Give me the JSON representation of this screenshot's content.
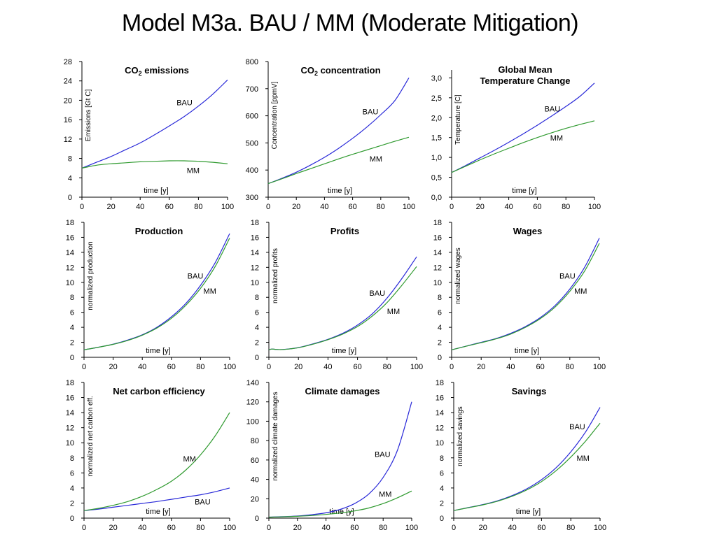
{
  "title": "Model  M3a.  BAU / MM (Moderate Mitigation)",
  "colors": {
    "BAU": "#2828d8",
    "MM": "#2f9a2f"
  },
  "chart_data": [
    {
      "type": "line",
      "title": "CO",
      "title_sub": "2",
      "title_suffix": " emissions",
      "xlabel": "time [y]",
      "ylabel": "Emissions [Gt C]",
      "xlim": [
        0,
        100
      ],
      "ylim": [
        0,
        28
      ],
      "xticks": [
        "0",
        "20",
        "40",
        "60",
        "80",
        "100"
      ],
      "yticks": [
        "0",
        "4",
        "8",
        "12",
        "16",
        "20",
        "24",
        "28"
      ],
      "x": [
        0,
        10,
        20,
        30,
        40,
        50,
        60,
        70,
        80,
        90,
        100
      ],
      "series": [
        {
          "name": "BAU",
          "values": [
            6.0,
            7.2,
            8.4,
            9.8,
            11.2,
            12.9,
            14.7,
            16.6,
            18.8,
            21.3,
            24.2
          ]
        },
        {
          "name": "MM",
          "values": [
            6.0,
            6.6,
            6.9,
            7.1,
            7.3,
            7.4,
            7.5,
            7.5,
            7.4,
            7.2,
            6.9
          ]
        }
      ],
      "labels": [
        {
          "text": "BAU",
          "x": 65,
          "y": 19
        },
        {
          "text": "MM",
          "x": 72,
          "y": 5
        }
      ]
    },
    {
      "type": "line",
      "title": "CO",
      "title_sub": "2",
      "title_suffix": " concentration",
      "xlabel": "time [y]",
      "ylabel": "Concentration [ppmV]",
      "xlim": [
        0,
        100
      ],
      "ylim": [
        300,
        800
      ],
      "xticks": [
        "0",
        "20",
        "40",
        "60",
        "80",
        "100"
      ],
      "yticks": [
        "300",
        "400",
        "500",
        "600",
        "700",
        "800"
      ],
      "x": [
        0,
        10,
        20,
        30,
        40,
        50,
        60,
        70,
        80,
        90,
        100
      ],
      "series": [
        {
          "name": "BAU",
          "values": [
            350,
            370,
            392,
            418,
            447,
            480,
            517,
            558,
            604,
            656,
            740
          ]
        },
        {
          "name": "MM",
          "values": [
            350,
            368,
            387,
            405,
            423,
            441,
            458,
            474,
            490,
            506,
            521
          ]
        }
      ],
      "labels": [
        {
          "text": "BAU",
          "x": 67,
          "y": 605
        },
        {
          "text": "MM",
          "x": 72,
          "y": 432
        }
      ]
    },
    {
      "type": "line",
      "title": "Global Mean",
      "title_line2": "Temperature Change",
      "xlabel": "time [y]",
      "ylabel": "Temperature [C]",
      "xlim": [
        0,
        100
      ],
      "ylim": [
        0,
        3.2
      ],
      "xticks": [
        "0",
        "20",
        "40",
        "60",
        "80",
        "100"
      ],
      "yticks": [
        "0,0",
        "0,5",
        "1,0",
        "1,5",
        "2,0",
        "2,5",
        "3,0"
      ],
      "ytick_values": [
        0,
        0.5,
        1.0,
        1.5,
        2.0,
        2.5,
        3.0
      ],
      "x": [
        0,
        10,
        20,
        30,
        40,
        50,
        60,
        70,
        80,
        90,
        100
      ],
      "series": [
        {
          "name": "BAU",
          "values": [
            0.62,
            0.8,
            0.99,
            1.18,
            1.38,
            1.59,
            1.81,
            2.04,
            2.28,
            2.54,
            2.87
          ]
        },
        {
          "name": "MM",
          "values": [
            0.62,
            0.78,
            0.94,
            1.09,
            1.23,
            1.37,
            1.5,
            1.62,
            1.73,
            1.83,
            1.92
          ]
        }
      ],
      "labels": [
        {
          "text": "BAU",
          "x": 65,
          "y": 2.15
        },
        {
          "text": "MM",
          "x": 69,
          "y": 1.42
        }
      ]
    },
    {
      "type": "line",
      "title": "Production",
      "xlabel": "time [y]",
      "ylabel": "normalized production",
      "xlim": [
        0,
        100
      ],
      "ylim": [
        0,
        18
      ],
      "xticks": [
        "0",
        "20",
        "40",
        "60",
        "80",
        "100"
      ],
      "yticks": [
        "0",
        "2",
        "4",
        "6",
        "8",
        "10",
        "12",
        "14",
        "16",
        "18"
      ],
      "x": [
        0,
        10,
        20,
        30,
        40,
        50,
        60,
        70,
        80,
        90,
        100
      ],
      "series": [
        {
          "name": "BAU",
          "values": [
            1.0,
            1.35,
            1.75,
            2.3,
            3.0,
            4.0,
            5.4,
            7.2,
            9.6,
            12.6,
            16.5
          ]
        },
        {
          "name": "MM",
          "values": [
            1.0,
            1.34,
            1.73,
            2.25,
            2.95,
            3.9,
            5.2,
            6.95,
            9.2,
            12.1,
            15.9
          ]
        }
      ],
      "labels": [
        {
          "text": "BAU",
          "x": 71,
          "y": 10.5
        },
        {
          "text": "MM",
          "x": 82,
          "y": 8.5
        }
      ]
    },
    {
      "type": "line",
      "title": "Profits",
      "xlabel": "time [y]",
      "ylabel": "normalized profits",
      "xlim": [
        0,
        100
      ],
      "ylim": [
        0,
        18
      ],
      "xticks": [
        "0",
        "20",
        "40",
        "60",
        "80",
        "100"
      ],
      "yticks": [
        "0",
        "2",
        "4",
        "6",
        "8",
        "10",
        "12",
        "14",
        "16",
        "18"
      ],
      "x": [
        0,
        2,
        5,
        10,
        20,
        30,
        40,
        50,
        60,
        70,
        80,
        90,
        100
      ],
      "series": [
        {
          "name": "BAU",
          "values": [
            1.0,
            1.1,
            1.05,
            1.05,
            1.3,
            1.8,
            2.4,
            3.2,
            4.3,
            5.8,
            7.9,
            10.5,
            13.4
          ]
        },
        {
          "name": "MM",
          "values": [
            1.0,
            1.1,
            1.05,
            1.04,
            1.28,
            1.75,
            2.35,
            3.1,
            4.1,
            5.5,
            7.3,
            9.6,
            12.1
          ]
        }
      ],
      "labels": [
        {
          "text": "BAU",
          "x": 68,
          "y": 8.2
        },
        {
          "text": "MM",
          "x": 80,
          "y": 5.8
        }
      ]
    },
    {
      "type": "line",
      "title": "Wages",
      "xlabel": "time [y]",
      "ylabel": "normalized wages",
      "xlim": [
        0,
        100
      ],
      "ylim": [
        0,
        18
      ],
      "xticks": [
        "0",
        "20",
        "40",
        "60",
        "80",
        "100"
      ],
      "yticks": [
        "0",
        "2",
        "4",
        "6",
        "8",
        "10",
        "12",
        "14",
        "16",
        "18"
      ],
      "x": [
        0,
        10,
        20,
        30,
        40,
        50,
        60,
        70,
        80,
        90,
        100
      ],
      "series": [
        {
          "name": "BAU",
          "values": [
            1.0,
            1.5,
            2.0,
            2.5,
            3.2,
            4.1,
            5.3,
            6.9,
            9.1,
            12.0,
            15.9
          ]
        },
        {
          "name": "MM",
          "values": [
            1.0,
            1.48,
            1.95,
            2.45,
            3.1,
            4.0,
            5.15,
            6.7,
            8.8,
            11.5,
            15.2
          ]
        }
      ],
      "labels": [
        {
          "text": "BAU",
          "x": 73,
          "y": 10.5
        },
        {
          "text": "MM",
          "x": 83,
          "y": 8.5
        }
      ]
    },
    {
      "type": "line",
      "title": "Net carbon efficiency",
      "xlabel": "time [y]",
      "ylabel": "normalized net carbon eff.",
      "xlim": [
        0,
        100
      ],
      "ylim": [
        0,
        18
      ],
      "xticks": [
        "0",
        "20",
        "40",
        "60",
        "80",
        "100"
      ],
      "yticks": [
        "0",
        "2",
        "4",
        "6",
        "8",
        "10",
        "12",
        "14",
        "16",
        "18"
      ],
      "x": [
        0,
        10,
        20,
        30,
        40,
        50,
        60,
        70,
        80,
        90,
        100
      ],
      "series": [
        {
          "name": "BAU",
          "values": [
            1.0,
            1.2,
            1.45,
            1.7,
            1.95,
            2.2,
            2.5,
            2.8,
            3.1,
            3.5,
            4.0
          ]
        },
        {
          "name": "MM",
          "values": [
            1.0,
            1.3,
            1.7,
            2.2,
            2.9,
            3.8,
            4.9,
            6.4,
            8.4,
            10.9,
            14.0
          ]
        }
      ],
      "labels": [
        {
          "text": "MM",
          "x": 68,
          "y": 7.5
        },
        {
          "text": "BAU",
          "x": 76,
          "y": 1.8
        }
      ]
    },
    {
      "type": "line",
      "title": "Climate damages",
      "xlabel": "time [y]",
      "ylabel": "normalized climate damages",
      "xlim": [
        0,
        100
      ],
      "ylim": [
        0,
        140
      ],
      "xticks": [
        "0",
        "20",
        "40",
        "60",
        "80",
        "100"
      ],
      "yticks": [
        "0",
        "20",
        "40",
        "60",
        "80",
        "100",
        "120",
        "140"
      ],
      "x": [
        0,
        10,
        20,
        30,
        40,
        50,
        60,
        70,
        80,
        90,
        100
      ],
      "series": [
        {
          "name": "BAU",
          "values": [
            1.0,
            1.5,
            2.2,
            3.5,
            5.5,
            9.0,
            15.0,
            25.0,
            42.0,
            70.0,
            120.0
          ]
        },
        {
          "name": "MM",
          "values": [
            1.0,
            1.4,
            1.9,
            2.7,
            3.8,
            5.3,
            7.4,
            10.5,
            15.0,
            21.0,
            28.0
          ]
        }
      ],
      "labels": [
        {
          "text": "BAU",
          "x": 74,
          "y": 63
        },
        {
          "text": "MM",
          "x": 77,
          "y": 22
        }
      ]
    },
    {
      "type": "line",
      "title": "Savings",
      "xlabel": "time [y]",
      "ylabel": "normalized savings",
      "xlim": [
        0,
        100
      ],
      "ylim": [
        0,
        18
      ],
      "xticks": [
        "0",
        "20",
        "40",
        "60",
        "80",
        "100"
      ],
      "yticks": [
        "0",
        "2",
        "4",
        "6",
        "8",
        "10",
        "12",
        "14",
        "16",
        "18"
      ],
      "x": [
        0,
        10,
        20,
        30,
        40,
        50,
        60,
        70,
        80,
        90,
        100
      ],
      "series": [
        {
          "name": "BAU",
          "values": [
            1.0,
            1.4,
            1.8,
            2.3,
            3.0,
            3.9,
            5.1,
            6.7,
            8.8,
            11.4,
            14.7
          ]
        },
        {
          "name": "MM",
          "values": [
            1.0,
            1.38,
            1.76,
            2.25,
            2.9,
            3.75,
            4.85,
            6.3,
            8.1,
            10.2,
            12.6
          ]
        }
      ],
      "labels": [
        {
          "text": "BAU",
          "x": 79,
          "y": 11.8
        },
        {
          "text": "MM",
          "x": 84,
          "y": 7.6
        }
      ]
    }
  ]
}
